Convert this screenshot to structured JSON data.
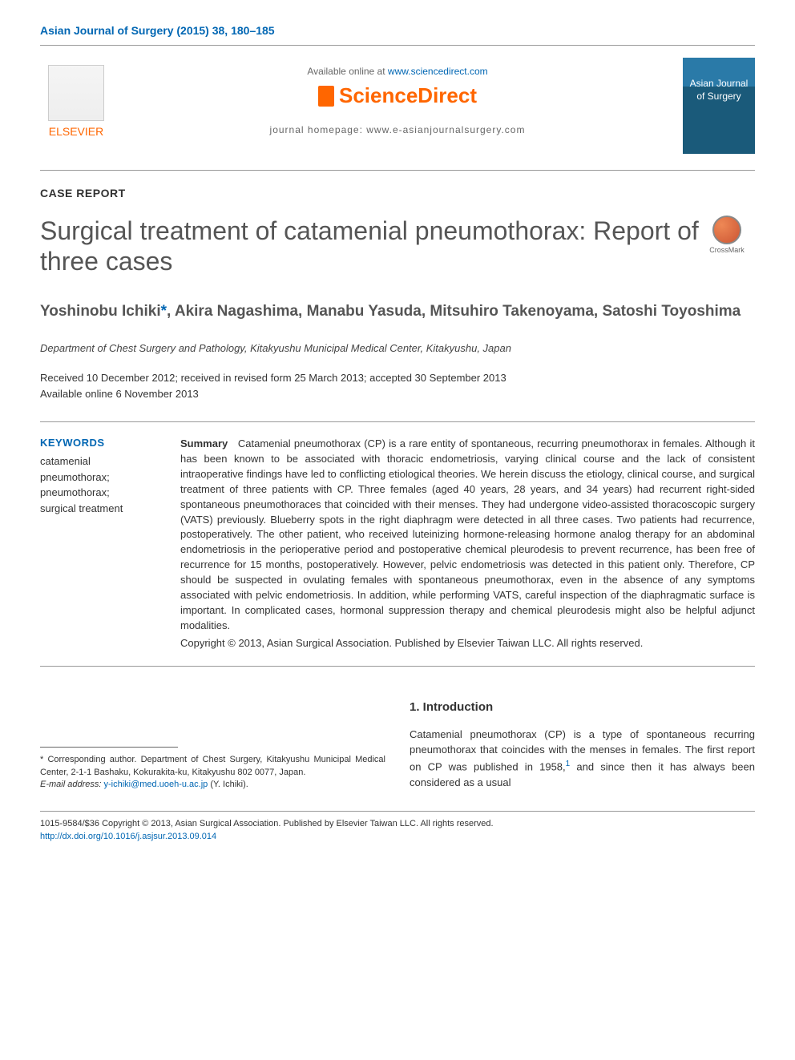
{
  "journal_ref": "Asian Journal of Surgery (2015) 38, 180–185",
  "header": {
    "available_text": "Available online at ",
    "available_link": "www.sciencedirect.com",
    "sciencedirect": "ScienceDirect",
    "homepage_label": "journal homepage: www.e-asianjournalsurgery.com",
    "elsevier_label": "ELSEVIER",
    "cover_title": "Asian Journal of Surgery"
  },
  "article_type": "CASE REPORT",
  "title": "Surgical treatment of catamenial pneumothorax: Report of three cases",
  "crossmark_label": "CrossMark",
  "authors": {
    "a1": "Yoshinobu Ichiki",
    "star": "*",
    "rest": ", Akira Nagashima, Manabu Yasuda, Mitsuhiro Takenoyama, Satoshi Toyoshima"
  },
  "affiliation": "Department of Chest Surgery and Pathology, Kitakyushu Municipal Medical Center, Kitakyushu, Japan",
  "dates": {
    "line1": "Received 10 December 2012; received in revised form 25 March 2013; accepted 30 September 2013",
    "line2": "Available online 6 November 2013"
  },
  "keywords": {
    "heading": "KEYWORDS",
    "list": "catamenial\n  pneumothorax;\npneumothorax;\nsurgical treatment"
  },
  "summary": {
    "label": "Summary",
    "text": "Catamenial pneumothorax (CP) is a rare entity of spontaneous, recurring pneumothorax in females. Although it has been known to be associated with thoracic endometriosis, varying clinical course and the lack of consistent intraoperative findings have led to conflicting etiological theories. We herein discuss the etiology, clinical course, and surgical treatment of three patients with CP. Three females (aged 40 years, 28 years, and 34 years) had recurrent right-sided spontaneous pneumothoraces that coincided with their menses. They had undergone video-assisted thoracoscopic surgery (VATS) previously. Blueberry spots in the right diaphragm were detected in all three cases. Two patients had recurrence, postoperatively. The other patient, who received luteinizing hormone-releasing hormone analog therapy for an abdominal endometriosis in the perioperative period and postoperative chemical pleurodesis to prevent recurrence, has been free of recurrence for 15 months, postoperatively. However, pelvic endometriosis was detected in this patient only. Therefore, CP should be suspected in ovulating females with spontaneous pneumothorax, even in the absence of any symptoms associated with pelvic endometriosis. In addition, while performing VATS, careful inspection of the diaphragmatic surface is important. In complicated cases, hormonal suppression therapy and chemical pleurodesis might also be helpful adjunct modalities.",
    "copyright": "Copyright © 2013, Asian Surgical Association. Published by Elsevier Taiwan LLC. All rights reserved."
  },
  "footnote": {
    "corr": "* Corresponding author. Department of Chest Surgery, Kitakyushu Municipal Medical Center, 2-1-1 Bashaku, Kokurakita-ku, Kitakyushu 802 0077, Japan.",
    "email_label": "E-mail address: ",
    "email": "y-ichiki@med.uoeh-u.ac.jp",
    "email_name": " (Y. Ichiki)."
  },
  "intro": {
    "heading": "1. Introduction",
    "text_p1": "Catamenial pneumothorax (CP) is a type of spontaneous recurring pneumothorax that coincides with the menses in females. The first report on CP was published in 1958,",
    "ref1": "1",
    "text_p2": " and since then it has always been considered as a usual"
  },
  "footer": {
    "line1": "1015-9584/$36 Copyright © 2013, Asian Surgical Association. Published by Elsevier Taiwan LLC. All rights reserved.",
    "doi": "http://dx.doi.org/10.1016/j.asjsur.2013.09.014"
  },
  "colors": {
    "link": "#0066b3",
    "orange": "#ff6600",
    "text": "#333333"
  }
}
